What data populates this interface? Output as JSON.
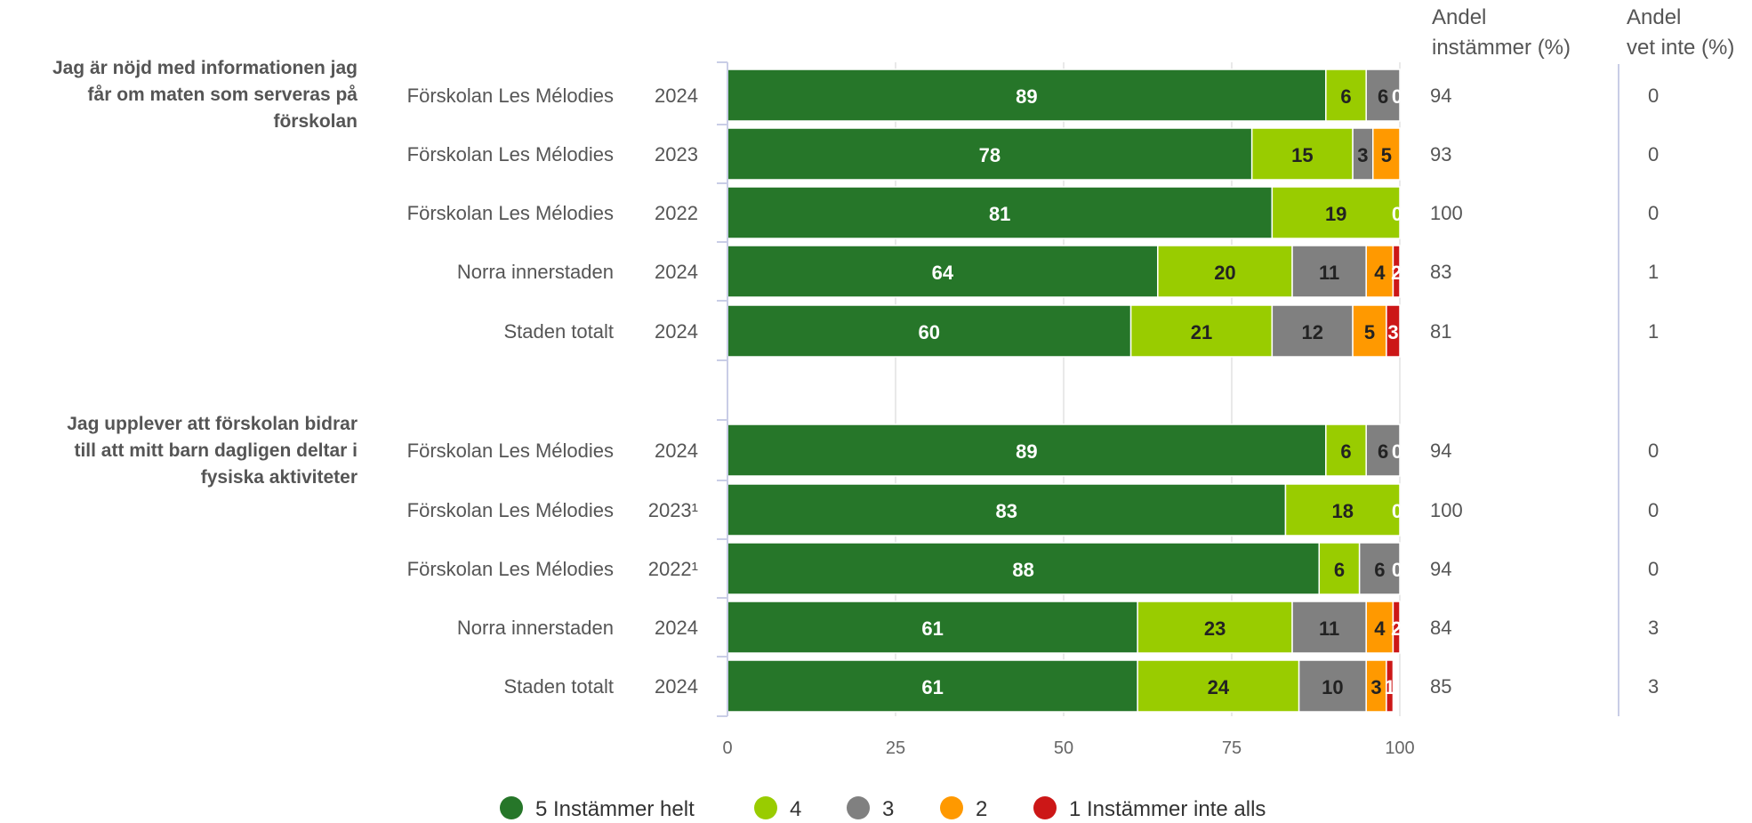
{
  "chart_data": {
    "type": "bar",
    "orientation": "horizontal",
    "stacked": true,
    "xlim": [
      0,
      100
    ],
    "xticks": [
      "0",
      "25",
      "50",
      "75",
      "100"
    ],
    "legend_position": "bottom",
    "column_headers": {
      "instammer": [
        "Andel",
        "instämmer (%)"
      ],
      "vet_inte": [
        "Andel",
        "vet inte (%)"
      ]
    },
    "series": [
      {
        "name": "5 Instämmer helt",
        "color": "#267629",
        "label_color": "#ffffff"
      },
      {
        "name": "4",
        "color": "#99cc00",
        "label_color": "#222222"
      },
      {
        "name": "3",
        "color": "#808080",
        "label_color": "#222222"
      },
      {
        "name": "2",
        "color": "#ff9900",
        "label_color": "#222222"
      },
      {
        "name": "1 Instämmer inte alls",
        "color": "#cc1717",
        "label_color": "#ffffff"
      }
    ],
    "groups": [
      {
        "question": [
          "Jag är nöjd med informationen jag",
          "får om maten som serveras på",
          "förskolan"
        ],
        "rows": [
          {
            "label": "Förskolan Les Mélodies",
            "year": "2024",
            "values": [
              89,
              6,
              6,
              0,
              0
            ],
            "instammer": "94",
            "vet_inte": "0"
          },
          {
            "label": "Förskolan Les Mélodies",
            "year": "2023",
            "values": [
              78,
              15,
              3,
              5,
              0
            ],
            "instammer": "93",
            "vet_inte": "0"
          },
          {
            "label": "Förskolan Les Mélodies",
            "year": "2022",
            "values": [
              81,
              19,
              0,
              0,
              0
            ],
            "instammer": "100",
            "vet_inte": "0"
          },
          {
            "label": "Norra innerstaden",
            "year": "2024",
            "values": [
              64,
              20,
              11,
              4,
              2
            ],
            "instammer": "83",
            "vet_inte": "1"
          },
          {
            "label": "Staden totalt",
            "year": "2024",
            "values": [
              60,
              21,
              12,
              5,
              3
            ],
            "instammer": "81",
            "vet_inte": "1"
          }
        ]
      },
      {
        "question": [
          "Jag upplever att förskolan bidrar",
          "till att mitt barn dagligen deltar i",
          "fysiska aktiviteter"
        ],
        "rows": [
          {
            "label": "Förskolan Les Mélodies",
            "year": "2024",
            "values": [
              89,
              6,
              6,
              0,
              0
            ],
            "instammer": "94",
            "vet_inte": "0"
          },
          {
            "label": "Förskolan Les Mélodies",
            "year": "2023¹",
            "values": [
              83,
              18,
              0,
              0,
              0
            ],
            "instammer": "100",
            "vet_inte": "0"
          },
          {
            "label": "Förskolan Les Mélodies",
            "year": "2022¹",
            "values": [
              88,
              6,
              6,
              0,
              0
            ],
            "instammer": "94",
            "vet_inte": "0"
          },
          {
            "label": "Norra innerstaden",
            "year": "2024",
            "values": [
              61,
              23,
              11,
              4,
              2
            ],
            "instammer": "84",
            "vet_inte": "3"
          },
          {
            "label": "Staden totalt",
            "year": "2024",
            "values": [
              61,
              24,
              10,
              3,
              1
            ],
            "instammer": "85",
            "vet_inte": "3"
          }
        ]
      }
    ]
  }
}
